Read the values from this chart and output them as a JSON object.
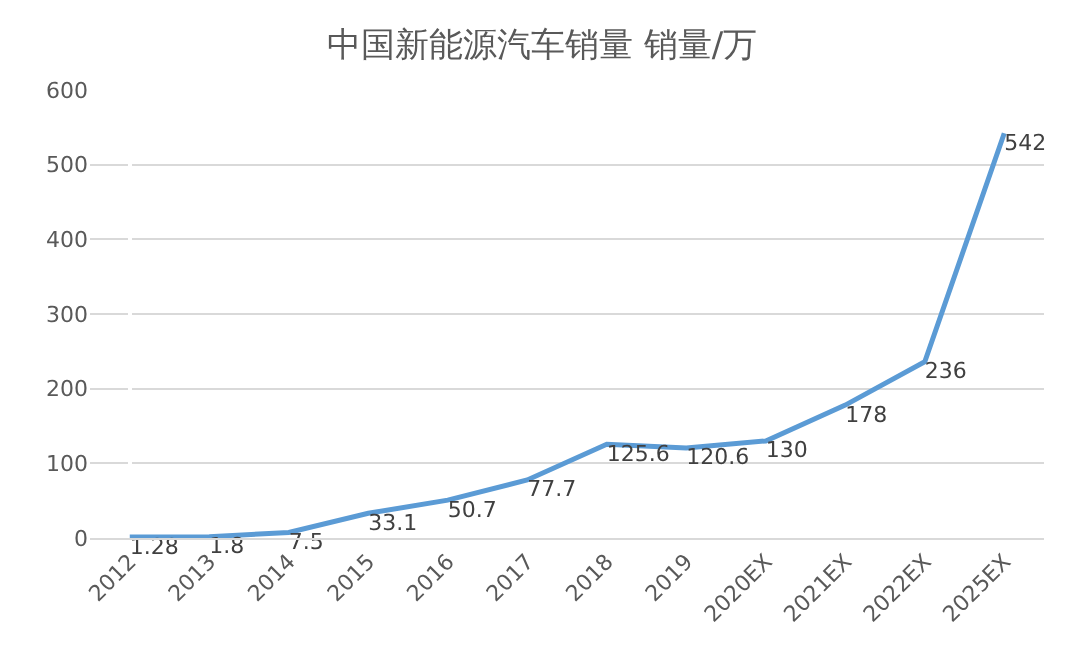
{
  "chart_data": {
    "type": "line",
    "title": "中国新能源汽车销量 销量/万",
    "categories": [
      "2012",
      "2013",
      "2014",
      "2015",
      "2016",
      "2017",
      "2018",
      "2019",
      "2020EX",
      "2021EX",
      "2022EX",
      "2025EX"
    ],
    "series": [
      {
        "color": "#5b9bd5",
        "values": [
          1.28,
          1.8,
          7.5,
          33.1,
          50.7,
          77.7,
          125.6,
          120.6,
          130,
          178,
          236,
          542
        ]
      }
    ],
    "ylim": [
      0,
      600
    ],
    "yticks": [
      0,
      100,
      200,
      300,
      400,
      500,
      600
    ],
    "grid": "y",
    "legend": false,
    "marker": "none",
    "line_style": "solid",
    "data_labels": true
  }
}
